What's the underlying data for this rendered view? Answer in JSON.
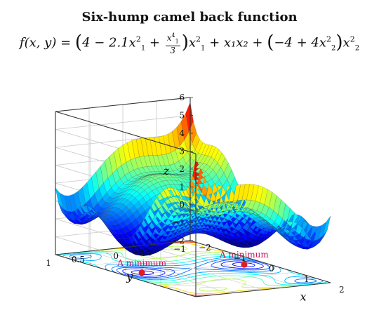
{
  "chart_data": {
    "type": "surface",
    "title": "Six-hump camel back function",
    "formula_text": {
      "lhs": "f(x, y) = ",
      "c4": "4 − 2.1x",
      "sq1": "2",
      "sub1": "1",
      "plus": " + ",
      "frac_num": "x",
      "frac_num_sup": "4",
      "frac_num_sub": "1",
      "frac_den": "3",
      "x1sq": "x",
      "mid": " + x₁x₂ + ",
      "c_neg4": "−4 + 4x",
      "tail": "x",
      "sq": "2",
      "sub2": "2"
    },
    "function": "f(x1,x2) = (4 - 2.1*x1^2 + x1^4/3)*x1^2 + x1*x2 + (-4 + 4*x2^2)*x2^2",
    "xlabel": "x",
    "ylabel": "y",
    "zlabel": "z",
    "xlim": [
      -2,
      2
    ],
    "ylim": [
      -1,
      1
    ],
    "zlim": [
      -2,
      6
    ],
    "xticks": [
      "−2",
      "−1",
      "0",
      "1",
      "2"
    ],
    "yticks": [
      "−1",
      "−0.5",
      "0",
      "0.5",
      "1"
    ],
    "zticks": [
      "−2",
      "−1",
      "0",
      "1",
      "2",
      "3",
      "4",
      "5",
      "6"
    ],
    "grid": true,
    "colormap": "jet",
    "contour_projection": true,
    "annotations": [
      {
        "label": "A minimum",
        "x": -0.0898,
        "y": 0.7126,
        "z": -2
      },
      {
        "label": "A minimum",
        "x": 0.0898,
        "y": -0.7126,
        "z": -2
      }
    ],
    "colors": {
      "minimum_marker": "#e41a1c",
      "annotation_text": "#c2185b",
      "axis": "#333333",
      "grid": "#c8c8c8"
    }
  }
}
